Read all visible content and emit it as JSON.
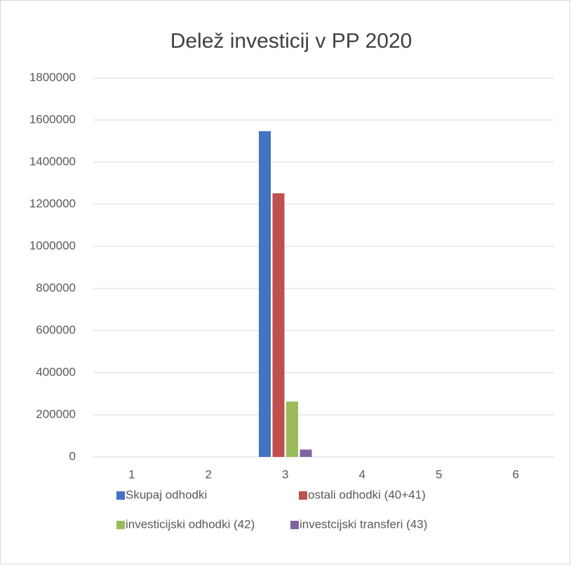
{
  "chart_data": {
    "type": "bar",
    "title": "Delež investicij v PP 2020",
    "categories": [
      "1",
      "2",
      "3",
      "4",
      "5",
      "6"
    ],
    "series": [
      {
        "name": "Skupaj odhodki",
        "color": "#4472c4",
        "values": [
          null,
          null,
          1547000,
          null,
          null,
          null
        ]
      },
      {
        "name": "ostali odhodki (40+41)",
        "color": "#c0504d",
        "values": [
          null,
          null,
          1252000,
          null,
          null,
          null
        ]
      },
      {
        "name": "investicijski odhodki (42)",
        "color": "#9bbb59",
        "values": [
          null,
          null,
          263000,
          null,
          null,
          null
        ]
      },
      {
        "name": "investcijski transferi (43)",
        "color": "#8064a2",
        "values": [
          null,
          null,
          35000,
          null,
          null,
          null
        ]
      }
    ],
    "ylim": [
      0,
      1800000
    ],
    "yticks": [
      0,
      200000,
      400000,
      600000,
      800000,
      1000000,
      1200000,
      1400000,
      1600000,
      1800000
    ],
    "grid": true,
    "legend": "bottom"
  }
}
